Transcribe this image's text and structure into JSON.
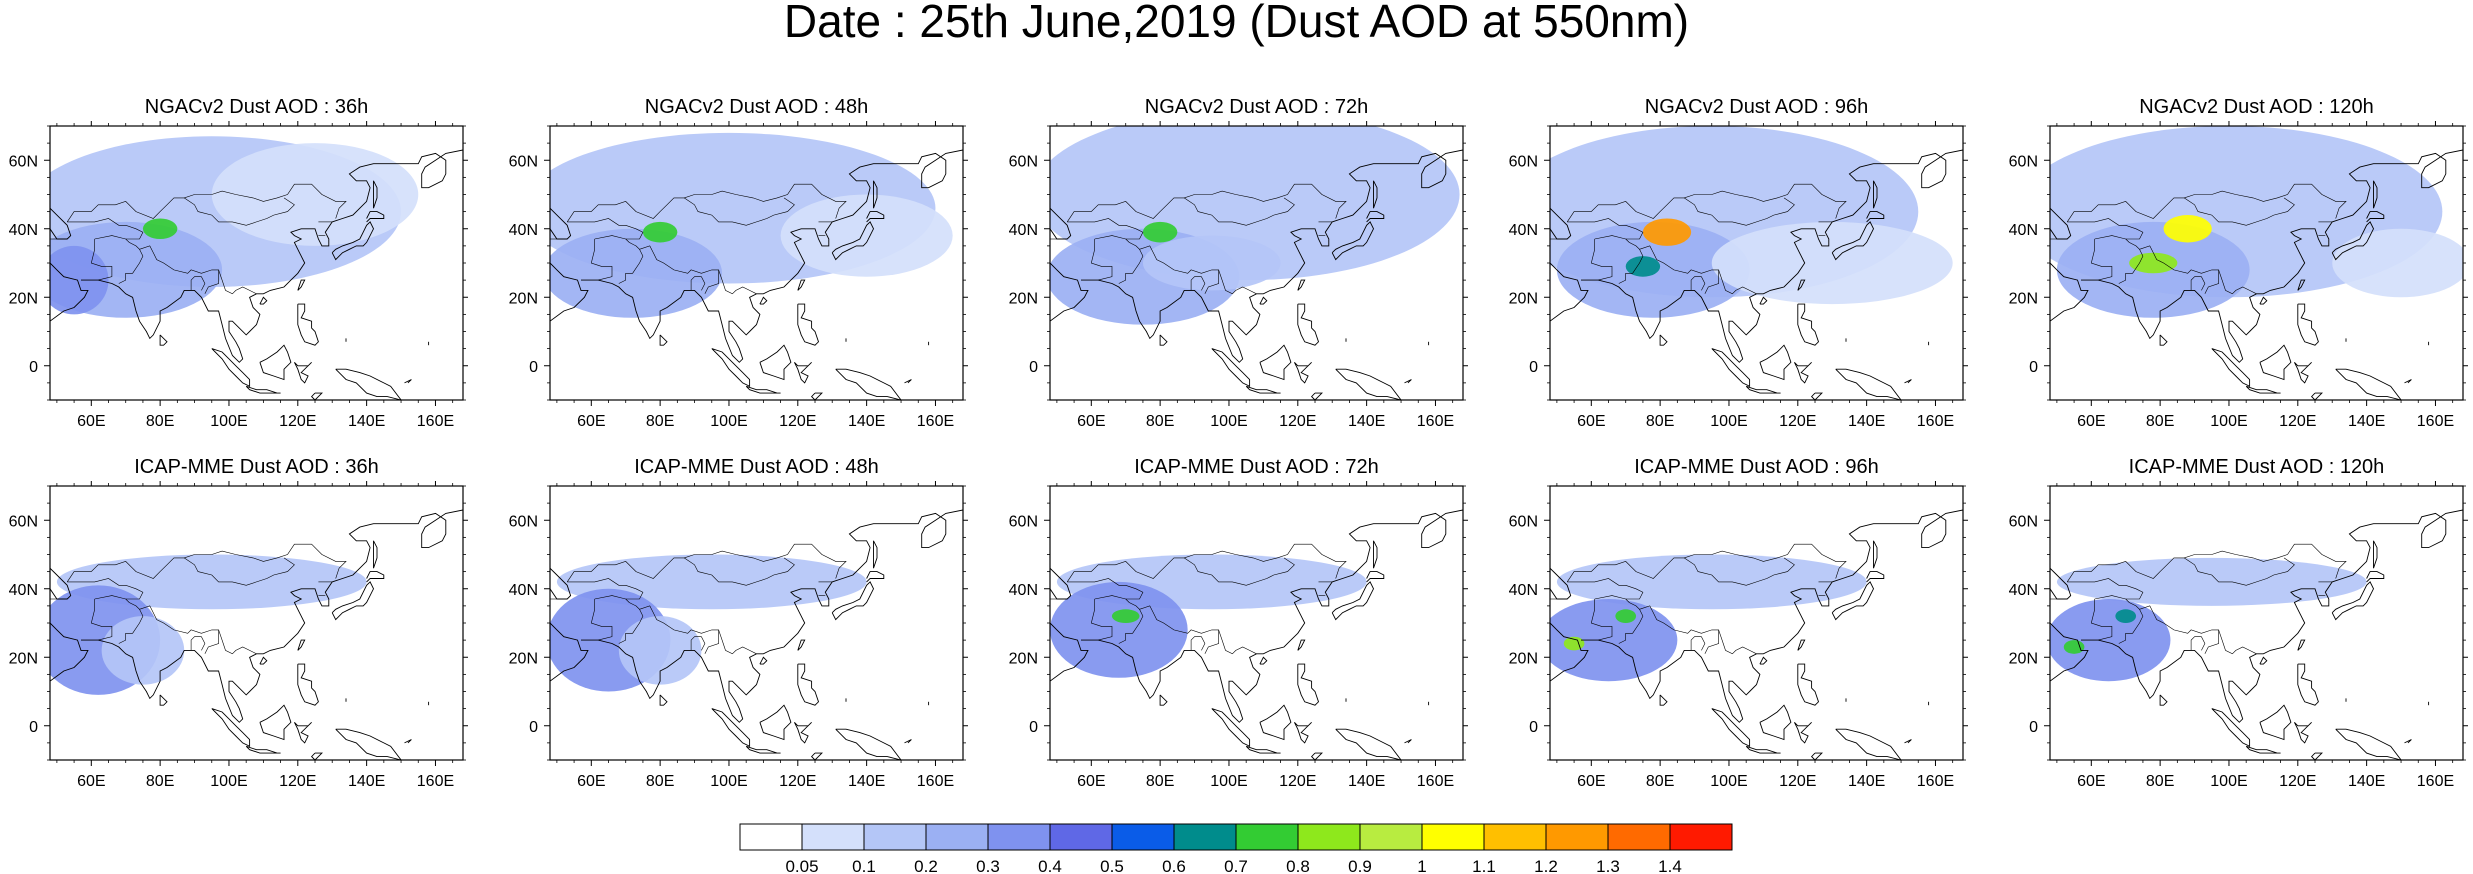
{
  "title": "Date : 25th June,2019 (Dust AOD at 550nm)",
  "map": {
    "lon_range": [
      48,
      168
    ],
    "lat_range": [
      -10,
      70
    ],
    "x_ticks": [
      {
        "v": 60,
        "label": "60E"
      },
      {
        "v": 80,
        "label": "80E"
      },
      {
        "v": 100,
        "label": "100E"
      },
      {
        "v": 120,
        "label": "120E"
      },
      {
        "v": 140,
        "label": "140E"
      },
      {
        "v": 160,
        "label": "160E"
      }
    ],
    "y_ticks": [
      {
        "v": 0,
        "label": "0"
      },
      {
        "v": 20,
        "label": "20N"
      },
      {
        "v": 40,
        "label": "40N"
      },
      {
        "v": 60,
        "label": "60N"
      }
    ]
  },
  "panels": [
    {
      "title": "NGACv2 Dust AOD : 36h",
      "model": "ngac",
      "lead": 36
    },
    {
      "title": "NGACv2 Dust AOD : 48h",
      "model": "ngac",
      "lead": 48
    },
    {
      "title": "NGACv2 Dust AOD : 72h",
      "model": "ngac",
      "lead": 72
    },
    {
      "title": "NGACv2 Dust AOD : 96h",
      "model": "ngac",
      "lead": 96
    },
    {
      "title": "NGACv2 Dust AOD : 120h",
      "model": "ngac",
      "lead": 120
    },
    {
      "title": "ICAP-MME Dust AOD : 36h",
      "model": "icap",
      "lead": 36
    },
    {
      "title": "ICAP-MME Dust AOD : 48h",
      "model": "icap",
      "lead": 48
    },
    {
      "title": "ICAP-MME Dust AOD : 72h",
      "model": "icap",
      "lead": 72
    },
    {
      "title": "ICAP-MME Dust AOD : 96h",
      "model": "icap",
      "lead": 96
    },
    {
      "title": "ICAP-MME Dust AOD : 120h",
      "model": "icap",
      "lead": 120
    }
  ],
  "colorbar": {
    "labels": [
      "0.05",
      "0.1",
      "0.2",
      "0.3",
      "0.4",
      "0.5",
      "0.6",
      "0.7",
      "0.8",
      "0.9",
      "1",
      "1.1",
      "1.2",
      "1.3",
      "1.4"
    ],
    "colors": [
      "#ffffff",
      "#d4e0fb",
      "#b4c6f7",
      "#9bb0f3",
      "#7f92ef",
      "#5f68e6",
      "#0a5ce8",
      "#008c8c",
      "#33cc33",
      "#8ee81c",
      "#b8ec40",
      "#ffff00",
      "#ffbf00",
      "#ff9900",
      "#ff6a00",
      "#ff1a00"
    ]
  },
  "chart_data": {
    "type": "heatmap",
    "title": "Date : 25th June,2019 (Dust AOD at 550nm)",
    "variable": "Dust AOD at 550nm",
    "x_range": [
      48,
      168
    ],
    "y_range": [
      -10,
      70
    ],
    "color_levels": [
      0.05,
      0.1,
      0.2,
      0.3,
      0.4,
      0.5,
      0.6,
      0.7,
      0.8,
      0.9,
      1,
      1.1,
      1.2,
      1.3,
      1.4
    ],
    "panels": [
      {
        "name": "NGACv2 Dust AOD : 36h",
        "blobs": [
          {
            "lon": 95,
            "lat": 45,
            "rlon": 55,
            "rlat": 22,
            "value": 0.12
          },
          {
            "lon": 70,
            "lat": 28,
            "rlon": 28,
            "rlat": 14,
            "value": 0.25
          },
          {
            "lon": 80,
            "lat": 40,
            "rlon": 5,
            "rlat": 3,
            "value": 0.75
          },
          {
            "lon": 55,
            "lat": 25,
            "rlon": 10,
            "rlat": 10,
            "value": 0.3
          },
          {
            "lon": 125,
            "lat": 50,
            "rlon": 30,
            "rlat": 15,
            "value": 0.08
          }
        ]
      },
      {
        "name": "NGACv2 Dust AOD : 48h",
        "blobs": [
          {
            "lon": 100,
            "lat": 46,
            "rlon": 60,
            "rlat": 22,
            "value": 0.12
          },
          {
            "lon": 72,
            "lat": 27,
            "rlon": 26,
            "rlat": 13,
            "value": 0.25
          },
          {
            "lon": 80,
            "lat": 39,
            "rlon": 5,
            "rlat": 3,
            "value": 0.7
          },
          {
            "lon": 140,
            "lat": 38,
            "rlon": 25,
            "rlat": 12,
            "value": 0.08
          }
        ]
      },
      {
        "name": "NGACv2 Dust AOD : 72h",
        "blobs": [
          {
            "lon": 105,
            "lat": 50,
            "rlon": 62,
            "rlat": 25,
            "value": 0.12
          },
          {
            "lon": 75,
            "lat": 26,
            "rlon": 28,
            "rlat": 14,
            "value": 0.22
          },
          {
            "lon": 80,
            "lat": 39,
            "rlon": 5,
            "rlat": 3,
            "value": 0.7
          },
          {
            "lon": 95,
            "lat": 30,
            "rlon": 20,
            "rlat": 8,
            "value": 0.12
          }
        ]
      },
      {
        "name": "NGACv2 Dust AOD : 96h",
        "blobs": [
          {
            "lon": 95,
            "lat": 45,
            "rlon": 60,
            "rlat": 25,
            "value": 0.12
          },
          {
            "lon": 78,
            "lat": 28,
            "rlon": 28,
            "rlat": 14,
            "value": 0.25
          },
          {
            "lon": 82,
            "lat": 39,
            "rlon": 7,
            "rlat": 4,
            "value": 1.2
          },
          {
            "lon": 75,
            "lat": 29,
            "rlon": 5,
            "rlat": 3,
            "value": 0.6
          },
          {
            "lon": 130,
            "lat": 30,
            "rlon": 35,
            "rlat": 12,
            "value": 0.08
          }
        ]
      },
      {
        "name": "NGACv2 Dust AOD : 120h",
        "blobs": [
          {
            "lon": 100,
            "lat": 45,
            "rlon": 62,
            "rlat": 25,
            "value": 0.12
          },
          {
            "lon": 78,
            "lat": 28,
            "rlon": 28,
            "rlat": 14,
            "value": 0.28
          },
          {
            "lon": 88,
            "lat": 40,
            "rlon": 7,
            "rlat": 4,
            "value": 1.0
          },
          {
            "lon": 78,
            "lat": 30,
            "rlon": 7,
            "rlat": 3,
            "value": 0.8
          },
          {
            "lon": 150,
            "lat": 30,
            "rlon": 20,
            "rlat": 10,
            "value": 0.08
          }
        ]
      },
      {
        "name": "ICAP-MME Dust AOD : 36h",
        "blobs": [
          {
            "lon": 95,
            "lat": 42,
            "rlon": 45,
            "rlat": 8,
            "value": 0.15
          },
          {
            "lon": 62,
            "lat": 25,
            "rlon": 18,
            "rlat": 16,
            "value": 0.3
          },
          {
            "lon": 75,
            "lat": 22,
            "rlon": 12,
            "rlat": 10,
            "value": 0.15
          }
        ]
      },
      {
        "name": "ICAP-MME Dust AOD : 48h",
        "blobs": [
          {
            "lon": 95,
            "lat": 42,
            "rlon": 45,
            "rlat": 8,
            "value": 0.15
          },
          {
            "lon": 65,
            "lat": 25,
            "rlon": 18,
            "rlat": 15,
            "value": 0.3
          },
          {
            "lon": 80,
            "lat": 22,
            "rlon": 12,
            "rlat": 10,
            "value": 0.15
          }
        ]
      },
      {
        "name": "ICAP-MME Dust AOD : 72h",
        "blobs": [
          {
            "lon": 95,
            "lat": 42,
            "rlon": 45,
            "rlat": 8,
            "value": 0.12
          },
          {
            "lon": 68,
            "lat": 28,
            "rlon": 20,
            "rlat": 14,
            "value": 0.3
          },
          {
            "lon": 70,
            "lat": 32,
            "rlon": 4,
            "rlat": 2,
            "value": 0.75
          }
        ]
      },
      {
        "name": "ICAP-MME Dust AOD : 96h",
        "blobs": [
          {
            "lon": 95,
            "lat": 42,
            "rlon": 45,
            "rlat": 8,
            "value": 0.12
          },
          {
            "lon": 65,
            "lat": 25,
            "rlon": 20,
            "rlat": 12,
            "value": 0.3
          },
          {
            "lon": 55,
            "lat": 24,
            "rlon": 3,
            "rlat": 2,
            "value": 0.8
          },
          {
            "lon": 70,
            "lat": 32,
            "rlon": 3,
            "rlat": 2,
            "value": 0.7
          }
        ]
      },
      {
        "name": "ICAP-MME Dust AOD : 120h",
        "blobs": [
          {
            "lon": 95,
            "lat": 42,
            "rlon": 45,
            "rlat": 7,
            "value": 0.12
          },
          {
            "lon": 65,
            "lat": 25,
            "rlon": 18,
            "rlat": 12,
            "value": 0.3
          },
          {
            "lon": 55,
            "lat": 23,
            "rlon": 3,
            "rlat": 2,
            "value": 0.75
          },
          {
            "lon": 70,
            "lat": 32,
            "rlon": 3,
            "rlat": 2,
            "value": 0.6
          }
        ]
      }
    ]
  }
}
